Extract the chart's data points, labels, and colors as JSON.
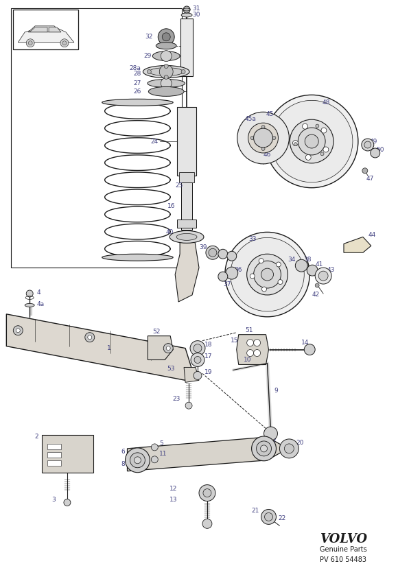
{
  "bg_color": "#ffffff",
  "line_color": "#1a1a1a",
  "label_color": "#404080",
  "text_color": "#1a1a1a",
  "brand": "VOLVO",
  "brand_sub": "Genuine Parts",
  "part_number": "PV 610 54483",
  "figsize": [
    5.8,
    8.44
  ],
  "dpi": 100
}
